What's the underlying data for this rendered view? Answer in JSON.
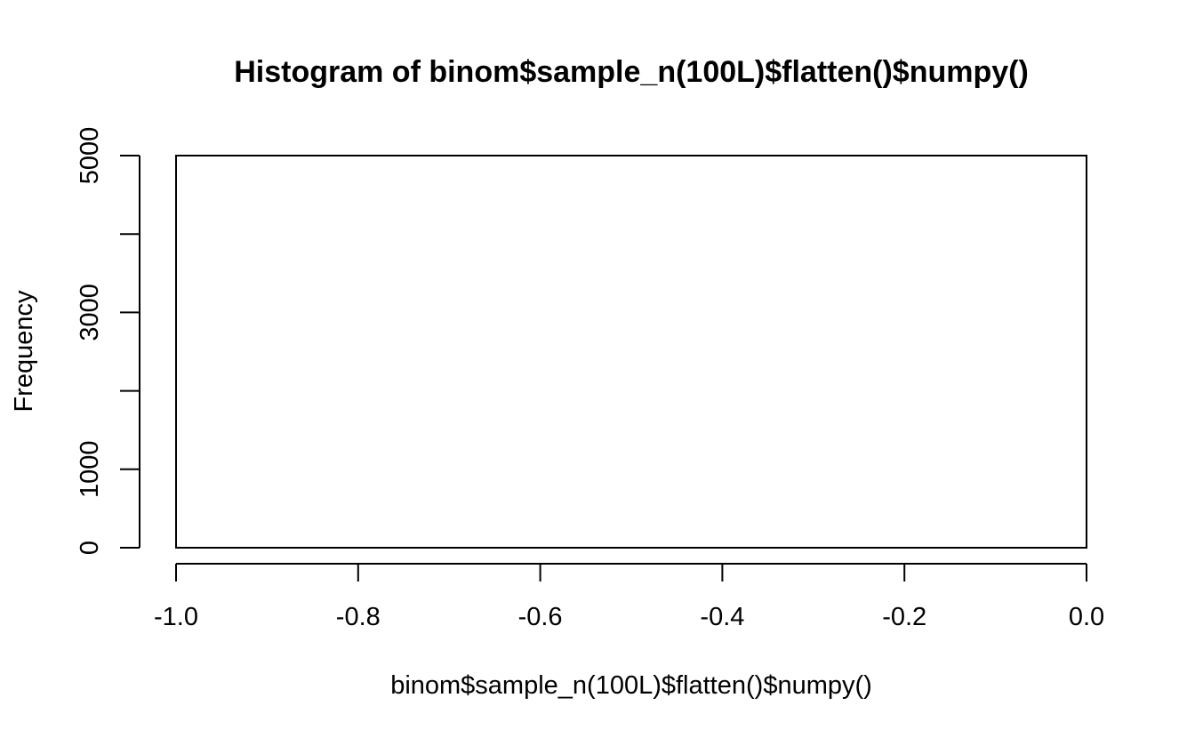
{
  "chart_data": {
    "type": "bar",
    "title": "Histogram of binom$sample_n(100L)$flatten()$numpy()",
    "xlabel": "binom$sample_n(100L)$flatten()$numpy()",
    "ylabel": "Frequency",
    "xlim": [
      -1.0,
      0.0
    ],
    "ylim": [
      0,
      5000
    ],
    "x_ticks": [
      -1.0,
      -0.8,
      -0.6,
      -0.4,
      -0.2,
      0.0
    ],
    "x_tick_labels": [
      "-1.0",
      "-0.8",
      "-0.6",
      "-0.4",
      "-0.2",
      "0.0"
    ],
    "y_ticks": [
      0,
      1000,
      2000,
      3000,
      4000,
      5000
    ],
    "y_tick_labels": [
      "0",
      "1000",
      "",
      "3000",
      "",
      "5000"
    ],
    "bins": [
      {
        "start": -1.0,
        "end": 0.0,
        "count": 5000
      }
    ],
    "grid": false,
    "colors": {
      "bar_fill": "#ffffff",
      "bar_stroke": "#000000"
    }
  }
}
